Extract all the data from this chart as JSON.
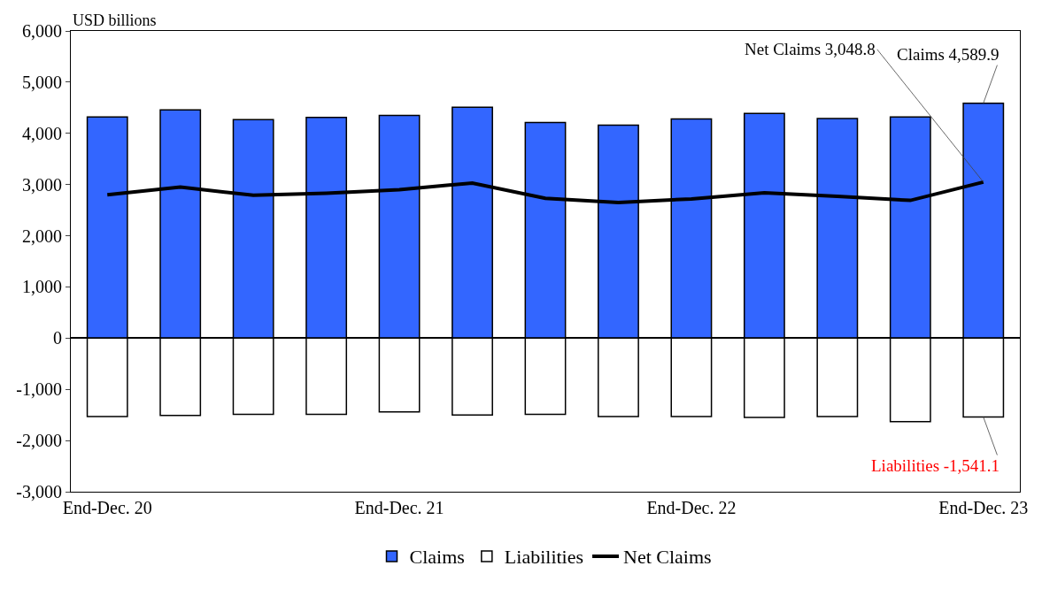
{
  "chart_data": {
    "type": "bar",
    "ylabel": "USD billions",
    "categories": [
      "End-Dec. 20",
      null,
      null,
      null,
      "End-Dec. 21",
      null,
      null,
      null,
      "End-Dec. 22",
      null,
      null,
      null,
      "End-Dec. 23"
    ],
    "series": [
      {
        "name": "Claims",
        "color": "#3366ff",
        "values": [
          4320,
          4460,
          4270,
          4310,
          4350,
          4510,
          4210,
          4160,
          4280,
          4390,
          4290,
          4320,
          4589.9
        ]
      },
      {
        "name": "Liabilities",
        "color": "#ffffff",
        "values": [
          -1530,
          -1510,
          -1490,
          -1490,
          -1440,
          -1500,
          -1490,
          -1530,
          -1530,
          -1550,
          -1530,
          -1630,
          -1541.1
        ]
      },
      {
        "name": "Net Claims",
        "type": "line",
        "color": "#000000",
        "values": [
          2800,
          2950,
          2790,
          2830,
          2900,
          3030,
          2730,
          2650,
          2720,
          2840,
          2770,
          2690,
          3048.8
        ]
      }
    ],
    "stacked": true,
    "ylim": [
      -3000,
      6000
    ],
    "yticks": [
      {
        "value": -3000,
        "label": "-3,000"
      },
      {
        "value": -2000,
        "label": "-2,000"
      },
      {
        "value": -1000,
        "label": "-1,000"
      },
      0,
      {
        "value": 1000,
        "label": "1,000"
      },
      {
        "value": 2000,
        "label": "2,000"
      },
      {
        "value": 3000,
        "label": "3,000"
      },
      {
        "value": 4000,
        "label": "4,000"
      },
      {
        "value": 5000,
        "label": "5,000"
      },
      {
        "value": 6000,
        "label": "6,000"
      }
    ],
    "annotations": [
      {
        "text": "Net Claims 3,048.8",
        "x": "End-Dec. 23",
        "y": 3048.8
      },
      {
        "text": "Claims 4,589.9",
        "x": "End-Dec. 23",
        "y": 4589.9
      },
      {
        "text": "Liabilities -1,541.1",
        "x": "End-Dec. 23",
        "y": -1541.1
      }
    ],
    "legend": "bottom",
    "marker": "none",
    "line_style": "solid"
  }
}
